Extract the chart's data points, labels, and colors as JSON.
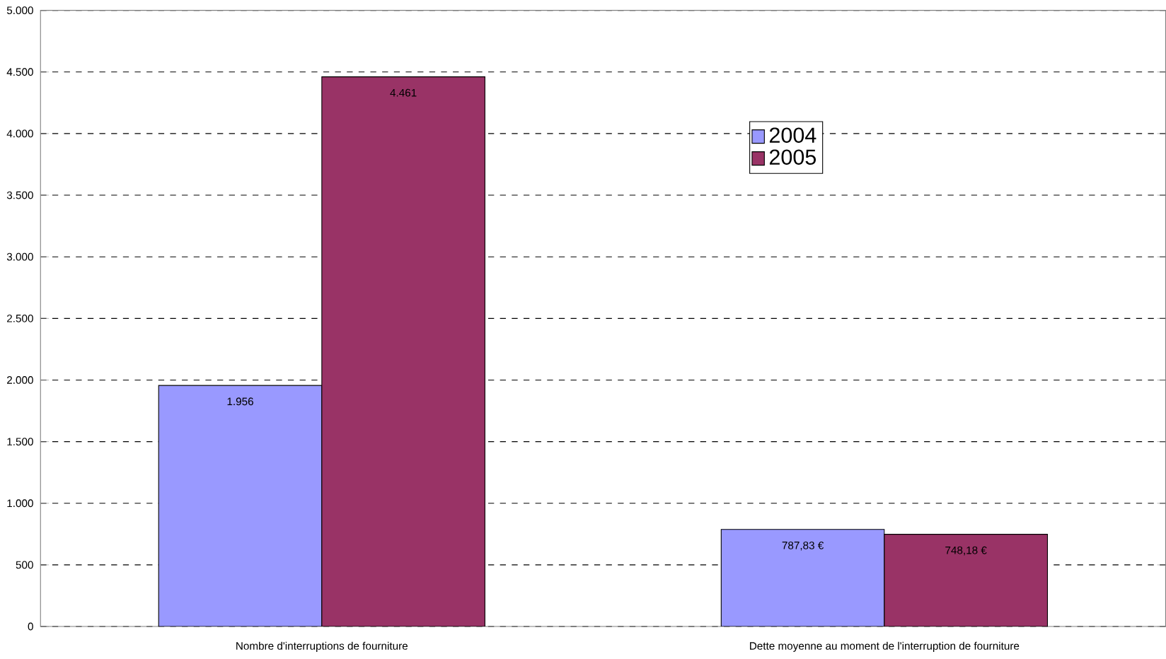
{
  "chart_data": {
    "type": "bar",
    "categories": [
      "Nombre d'interruptions de fourniture",
      "Dette moyenne au moment de l'interruption de fourniture"
    ],
    "series": [
      {
        "name": "2004",
        "color": "#9999ff",
        "values": [
          1956,
          787.83
        ],
        "value_labels": [
          "1.956",
          "787,83 €"
        ]
      },
      {
        "name": "2005",
        "color": "#993366",
        "values": [
          4461,
          748.18
        ],
        "value_labels": [
          "4.461",
          "748,18 €"
        ]
      }
    ],
    "ylim": [
      0,
      5000
    ],
    "yticks": [
      {
        "value": 0,
        "label": "0"
      },
      {
        "value": 500,
        "label": "500"
      },
      {
        "value": 1000,
        "label": "1.000"
      },
      {
        "value": 1500,
        "label": "1.500"
      },
      {
        "value": 2000,
        "label": "2.000"
      },
      {
        "value": 2500,
        "label": "2.500"
      },
      {
        "value": 3000,
        "label": "3.000"
      },
      {
        "value": 3500,
        "label": "3.500"
      },
      {
        "value": 4000,
        "label": "4.000"
      },
      {
        "value": 4500,
        "label": "4.500"
      },
      {
        "value": 5000,
        "label": "5.000"
      }
    ],
    "grid": "y",
    "legend": "top right"
  }
}
